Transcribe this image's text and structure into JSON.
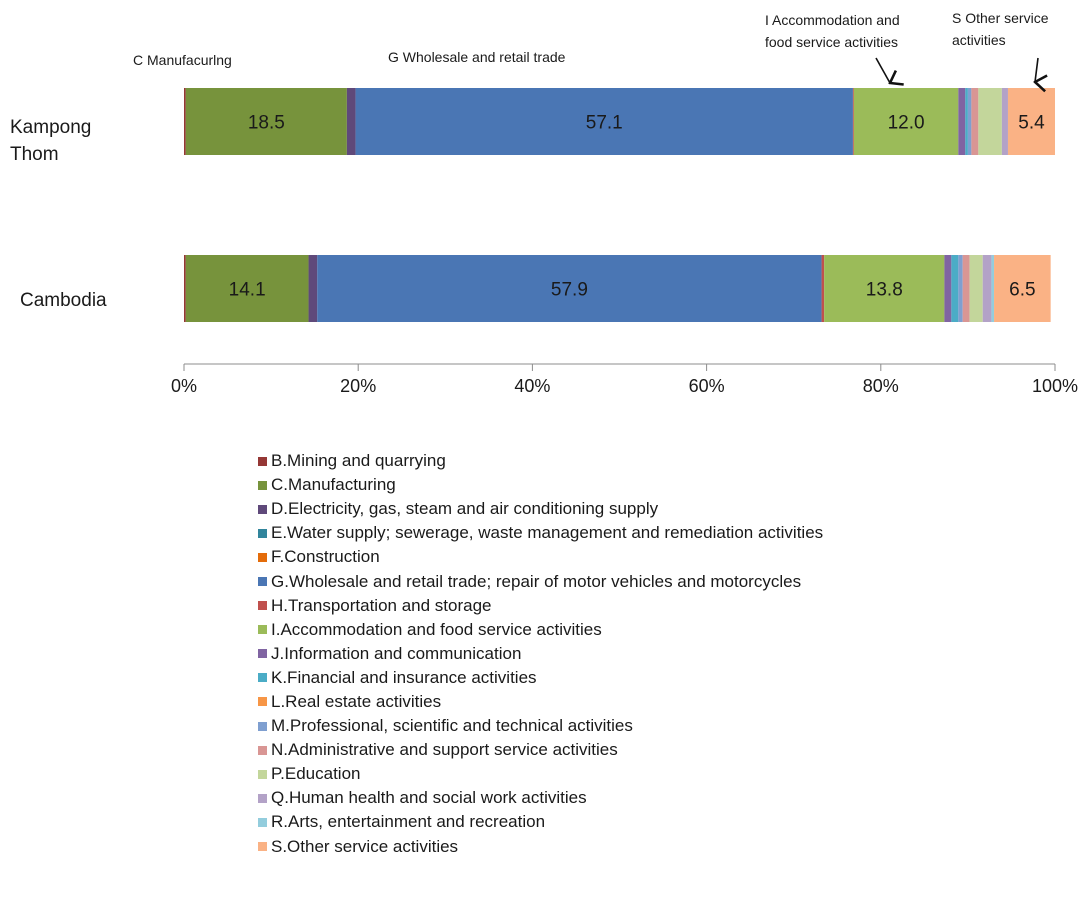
{
  "chart_data": {
    "type": "bar",
    "orientation": "horizontal",
    "stacked": "percent",
    "categories": [
      "Kampong Thom",
      "Cambodia"
    ],
    "xlim": [
      0,
      100
    ],
    "x_tick_labels": [
      "0%",
      "20%",
      "40%",
      "60%",
      "80%",
      "100%"
    ],
    "grid": false,
    "legend_position": "bottom",
    "series": [
      {
        "name": "B.Mining and quarrying",
        "color": "#953735",
        "values": [
          0.2,
          0.2
        ],
        "labels": [
          "",
          ""
        ]
      },
      {
        "name": "C.Manufacturing",
        "color": "#77933c",
        "values": [
          18.5,
          14.1
        ],
        "labels": [
          "18.5",
          "14.1"
        ]
      },
      {
        "name": "D.Electricity, gas, steam and air conditioning supply",
        "color": "#5f497a",
        "values": [
          1.0,
          1.0
        ],
        "labels": [
          "",
          ""
        ]
      },
      {
        "name": "E.Water supply; sewerage, waste management and remediation activities",
        "color": "#31859c",
        "values": [
          0.0,
          0.0
        ],
        "labels": [
          "",
          ""
        ]
      },
      {
        "name": "F.Construction",
        "color": "#e46c0a",
        "values": [
          0.0,
          0.0
        ],
        "labels": [
          "",
          ""
        ]
      },
      {
        "name": "G.Wholesale and retail trade; repair of motor vehicles and motorcycles",
        "color": "#4a76b4",
        "values": [
          57.1,
          57.9
        ],
        "labels": [
          "57.1",
          "57.9"
        ]
      },
      {
        "name": "H.Transportation and storage",
        "color": "#c0504d",
        "values": [
          0.1,
          0.3
        ],
        "labels": [
          "",
          ""
        ]
      },
      {
        "name": "I.Accommodation and food service activities",
        "color": "#9bbb59",
        "values": [
          12.0,
          13.8
        ],
        "labels": [
          "12.0",
          "13.8"
        ]
      },
      {
        "name": "J.Information and communication",
        "color": "#8064a2",
        "values": [
          0.8,
          0.8
        ],
        "labels": [
          "",
          ""
        ]
      },
      {
        "name": "K.Financial and insurance activities",
        "color": "#4bacc6",
        "values": [
          0.3,
          0.8
        ],
        "labels": [
          "",
          ""
        ]
      },
      {
        "name": "L.Real estate activities",
        "color": "#f79646",
        "values": [
          0.0,
          0.0
        ],
        "labels": [
          "",
          ""
        ]
      },
      {
        "name": "M.Professional, scientific and technical activities",
        "color": "#7f9fd0",
        "values": [
          0.4,
          0.5
        ],
        "labels": [
          "",
          ""
        ]
      },
      {
        "name": "N.Administrative and support service activities",
        "color": "#d99694",
        "values": [
          0.8,
          0.8
        ],
        "labels": [
          "",
          ""
        ]
      },
      {
        "name": "P.Education",
        "color": "#c3d69b",
        "values": [
          2.7,
          1.5
        ],
        "labels": [
          "",
          ""
        ]
      },
      {
        "name": "Q.Human health and social work activities",
        "color": "#b3a2c7",
        "values": [
          0.7,
          1.0
        ],
        "labels": [
          "",
          ""
        ]
      },
      {
        "name": "R.Arts, entertainment and recreation",
        "color": "#93cddd",
        "values": [
          0.0,
          0.3
        ],
        "labels": [
          "",
          ""
        ]
      },
      {
        "name": "S.Other service activities",
        "color": "#fab285",
        "values": [
          5.4,
          6.5
        ],
        "labels": [
          "5.4",
          "6.5"
        ]
      }
    ],
    "annotations": [
      {
        "text": "C Manufacurlng",
        "points_to": "C.Manufacturing"
      },
      {
        "text": "G Wholesale and retail  trade",
        "points_to": "G.Wholesale and retail trade"
      },
      {
        "text_lines": [
          "I Accommodation and",
          "food service activities"
        ],
        "points_to": "I.Accommodation and food service activities",
        "arrow": true
      },
      {
        "text_lines": [
          "S Other service",
          "activities"
        ],
        "points_to": "S.Other service activities",
        "arrow": true
      }
    ]
  }
}
